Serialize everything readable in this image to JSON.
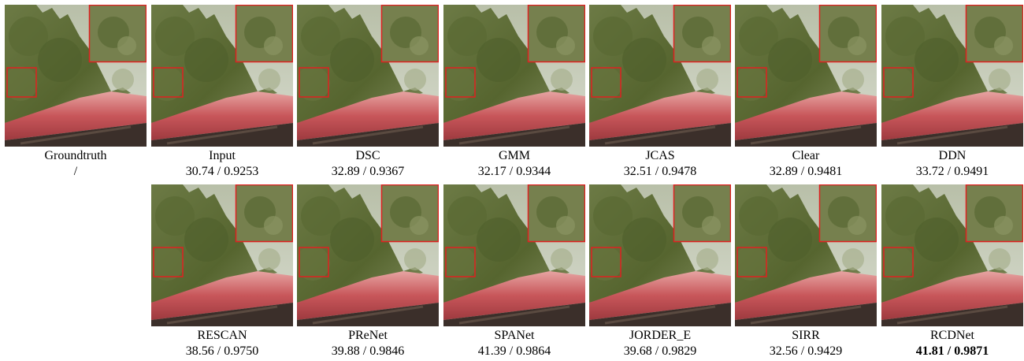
{
  "panels": [
    {
      "label": "Groundtruth",
      "score": "/"
    },
    {
      "label": "Input",
      "score": "30.74 / 0.9253"
    },
    {
      "label": "DSC",
      "score": "32.89 / 0.9367"
    },
    {
      "label": "GMM",
      "score": "32.17 / 0.9344"
    },
    {
      "label": "JCAS",
      "score": "32.51 / 0.9478"
    },
    {
      "label": "Clear",
      "score": "32.89 / 0.9481"
    },
    {
      "label": "DDN",
      "score": "33.72 / 0.9491"
    },
    {
      "label": "RESCAN",
      "score": "38.56 / 0.9750"
    },
    {
      "label": "PReNet",
      "score": "39.88 / 0.9846"
    },
    {
      "label": "SPANet",
      "score": "41.39 / 0.9864"
    },
    {
      "label": "JORDER_E",
      "score": "39.68 / 0.9829"
    },
    {
      "label": "SIRR",
      "score": "32.56 / 0.9429"
    },
    {
      "label": "RCDNet",
      "score": "41.81 / 0.9871",
      "bold": true
    }
  ]
}
